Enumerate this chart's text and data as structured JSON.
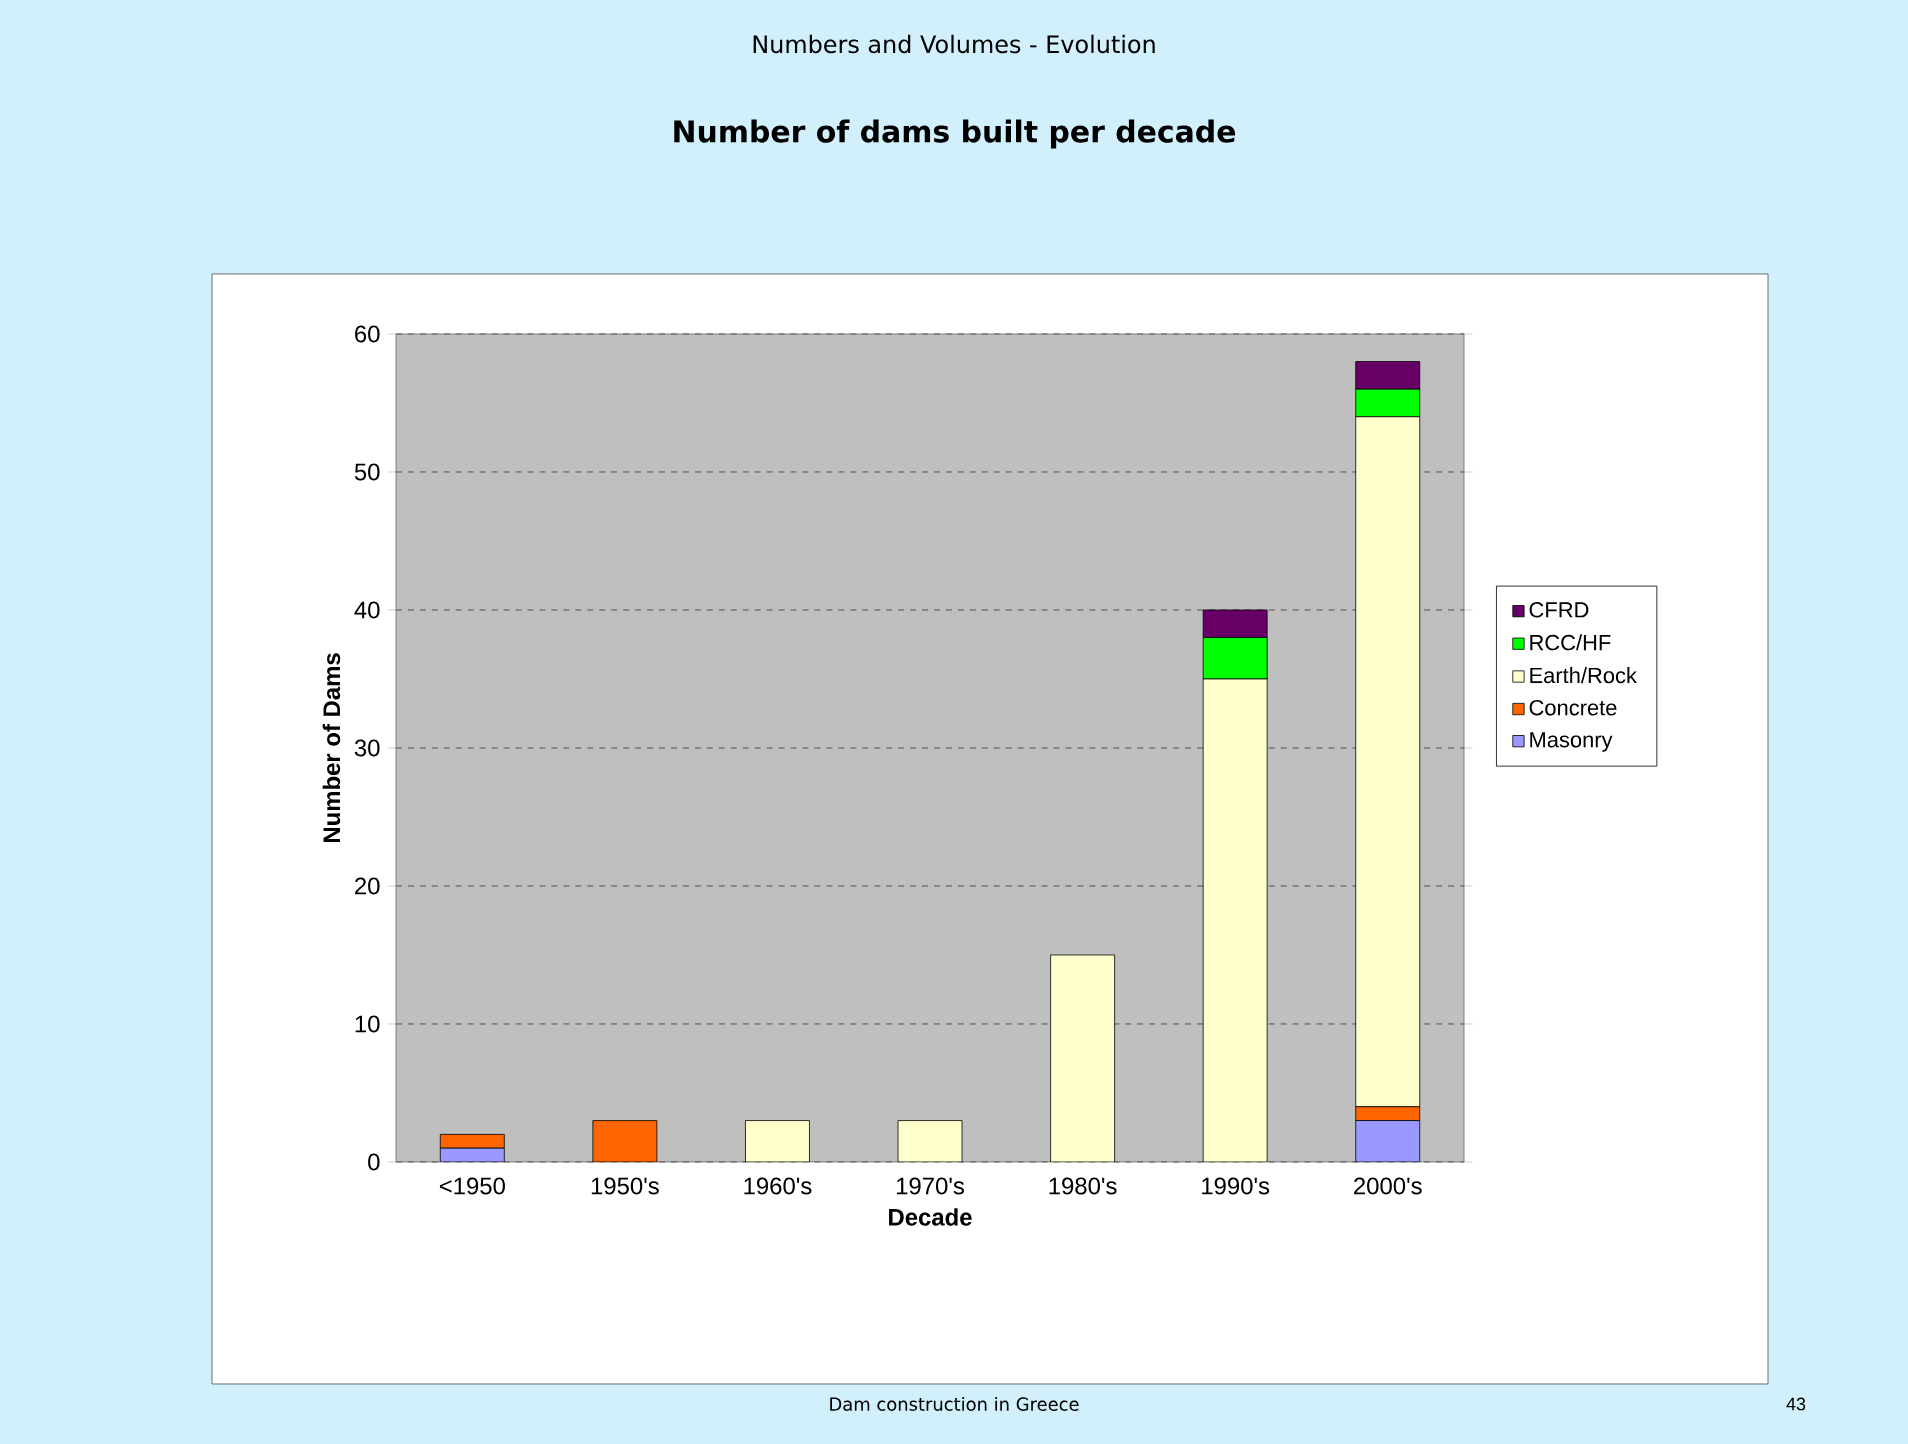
{
  "chart_data": {
    "type": "bar",
    "title": "Numbers and Volumes - Evolution",
    "subtitle": "Number of dams built per decade",
    "xlabel": "Decade",
    "ylabel": "Number of Dams",
    "categories": [
      "<1950",
      "1950's",
      "1960's",
      "1970's",
      "1980's",
      "1990's",
      "2000's"
    ],
    "stacked": true,
    "series": [
      {
        "name": "Masonry",
        "color": "#9999ff",
        "values": [
          1,
          0,
          0,
          0,
          0,
          0,
          3
        ]
      },
      {
        "name": "Concrete",
        "color": "#ff6600",
        "values": [
          1,
          3,
          0,
          0,
          0,
          0,
          1
        ]
      },
      {
        "name": "Earth/Rock",
        "color": "#ffffcc",
        "values": [
          0,
          0,
          3,
          3,
          15,
          35,
          50
        ]
      },
      {
        "name": "RCC/HF",
        "color": "#00ff00",
        "values": [
          0,
          0,
          0,
          0,
          0,
          3,
          2
        ]
      },
      {
        "name": "CFRD",
        "color": "#660066",
        "values": [
          0,
          0,
          0,
          0,
          0,
          2,
          2
        ]
      }
    ],
    "ylim": [
      0,
      60
    ],
    "yticks": [
      0,
      10,
      20,
      30,
      40,
      50,
      60
    ],
    "grid": "y",
    "legend": "right",
    "annotations": [
      "Dam construction in Greece",
      "43"
    ]
  }
}
